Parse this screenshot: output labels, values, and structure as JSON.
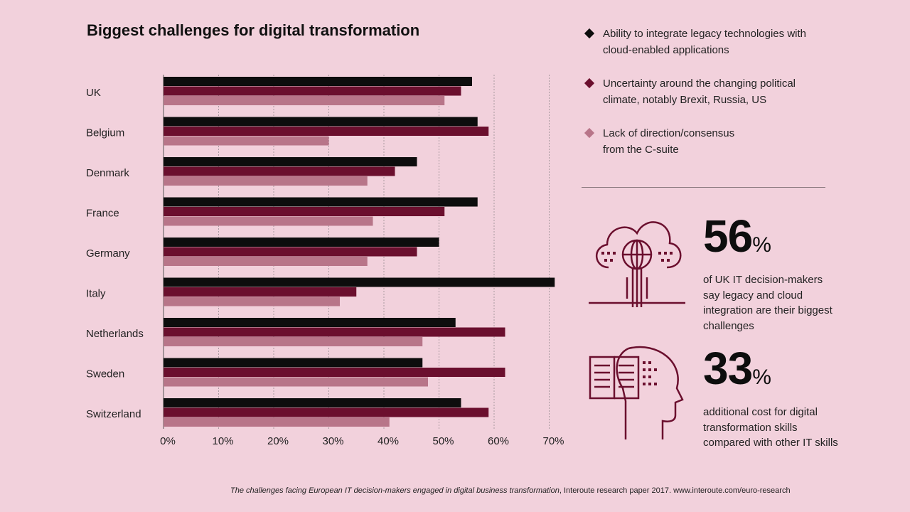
{
  "chart_data": {
    "type": "bar",
    "orientation": "horizontal",
    "title": "Biggest challenges for digital transformation",
    "categories": [
      "UK",
      "Belgium",
      "Denmark",
      "France",
      "Germany",
      "Italy",
      "Netherlands",
      "Sweden",
      "Switzerland"
    ],
    "series": [
      {
        "name": "Ability to integrate legacy technologies with cloud-enabled applications",
        "color": "#0d0d0d",
        "values": [
          56,
          57,
          46,
          57,
          50,
          71,
          53,
          47,
          54
        ]
      },
      {
        "name": "Uncertainty around the changing political climate, notably Brexit, Russia, US",
        "color": "#6b0f2e",
        "values": [
          54,
          59,
          42,
          51,
          46,
          35,
          62,
          62,
          59
        ]
      },
      {
        "name": "Lack of direction/consensus from the C-suite",
        "color": "#b87589",
        "values": [
          51,
          30,
          37,
          38,
          37,
          32,
          47,
          48,
          41
        ]
      }
    ],
    "xticks": [
      "0%",
      "10%",
      "20%",
      "30%",
      "40%",
      "50%",
      "60%",
      "70%"
    ],
    "xlim": [
      0,
      70
    ],
    "grid": true,
    "legend_position": "right"
  },
  "legend": {
    "items": [
      {
        "line1": "Ability to integrate legacy technologies with",
        "line2": "cloud-enabled applications",
        "color": "#0d0d0d"
      },
      {
        "line1": "Uncertainty around the changing political",
        "line2": "climate, notably Brexit, Russia, US",
        "color": "#6b0f2e"
      },
      {
        "line1": "Lack of direction/consensus",
        "line2": "from the C-suite",
        "color": "#b87589"
      }
    ]
  },
  "stats": [
    {
      "number": "56",
      "suffix": "%",
      "desc": "of UK IT decision-makers say legacy and cloud integration are their biggest challenges",
      "icon": "cloud-globe-icon"
    },
    {
      "number": "33",
      "suffix": "%",
      "desc": "additional cost for digital transformation skills compared with other IT skills",
      "icon": "head-book-icon"
    }
  ],
  "footnote": {
    "italic": "The challenges facing European IT decision-makers engaged in digital business transformation",
    "rest": ", Interoute research paper 2017. www.interoute.com/euro-research"
  }
}
